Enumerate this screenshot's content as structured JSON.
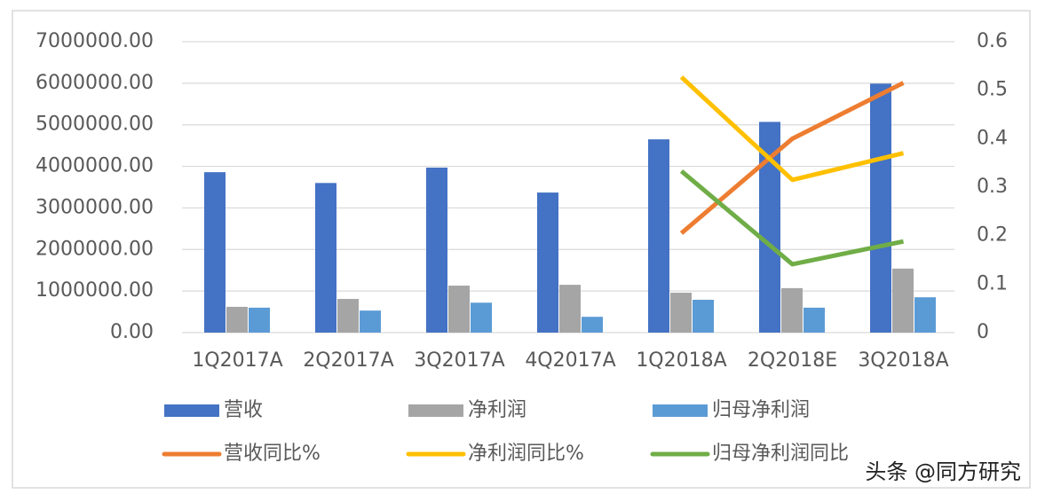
{
  "chart_data": {
    "type": "combo",
    "categories": [
      "1Q2017A",
      "2Q2017A",
      "3Q2017A",
      "4Q2017A",
      "1Q2018A",
      "2Q2018E",
      "3Q2018A"
    ],
    "series": [
      {
        "name": "营收",
        "type": "bar",
        "color": "#4472c4",
        "values": [
          3860000,
          3600000,
          3970000,
          3370000,
          4650000,
          5070000,
          5990000
        ]
      },
      {
        "name": "净利润",
        "type": "bar",
        "color": "#a5a5a5",
        "values": [
          620000,
          810000,
          1130000,
          1150000,
          960000,
          1070000,
          1540000
        ]
      },
      {
        "name": "归母净利润",
        "type": "bar",
        "color": "#5b9bd5",
        "values": [
          600000,
          530000,
          720000,
          380000,
          790000,
          600000,
          850000
        ]
      },
      {
        "name": "营收同比%",
        "type": "line",
        "axis": "y2",
        "color": "#ed7d31",
        "values": [
          null,
          null,
          null,
          null,
          0.205,
          0.4,
          0.515
        ]
      },
      {
        "name": "净利润同比%",
        "type": "line",
        "axis": "y2",
        "color": "#ffc000",
        "values": [
          null,
          null,
          null,
          null,
          0.527,
          0.315,
          0.37
        ]
      },
      {
        "name": "归母净利润同比",
        "type": "line",
        "axis": "y2",
        "color": "#70ad47",
        "values": [
          null,
          null,
          null,
          null,
          0.333,
          0.141,
          0.188
        ]
      }
    ],
    "ylim": [
      0,
      7000000
    ],
    "yticks": [
      {
        "value": 0,
        "label": "0.00"
      },
      {
        "value": 1000000,
        "label": "1000000.00"
      },
      {
        "value": 2000000,
        "label": "2000000.00"
      },
      {
        "value": 3000000,
        "label": "3000000.00"
      },
      {
        "value": 4000000,
        "label": "4000000.00"
      },
      {
        "value": 5000000,
        "label": "5000000.00"
      },
      {
        "value": 6000000,
        "label": "6000000.00"
      },
      {
        "value": 7000000,
        "label": "7000000.00"
      }
    ],
    "y2lim": [
      0,
      0.6
    ],
    "y2ticks": [
      0,
      0.1,
      0.2,
      0.3,
      0.4,
      0.5,
      0.6
    ],
    "grid": true,
    "legend": "bottom",
    "watermark": "头条 @同方研究"
  }
}
